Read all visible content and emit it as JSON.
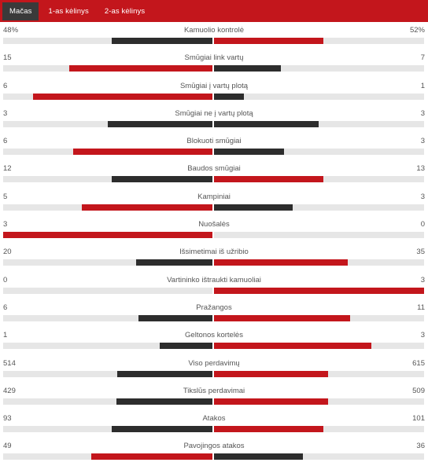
{
  "tabs": [
    {
      "label": "Mačas",
      "active": true
    },
    {
      "label": "1-as kėlinys",
      "active": false
    },
    {
      "label": "2-as kėlinys",
      "active": false
    }
  ],
  "colors": {
    "winner": "#c3161c",
    "loser": "#2d2d2d",
    "track": "#e6e6e6",
    "tabbar": "#c3161c"
  },
  "stats": [
    {
      "label": "Kamuolio kontrolė",
      "home": "48%",
      "away": "52%",
      "home_value": 48,
      "away_value": 52
    },
    {
      "label": "Smūgiai link vartų",
      "home": "15",
      "away": "7",
      "home_value": 15,
      "away_value": 7
    },
    {
      "label": "Smūgiai į vartų plotą",
      "home": "6",
      "away": "1",
      "home_value": 6,
      "away_value": 1
    },
    {
      "label": "Smūgiai ne į vartų plotą",
      "home": "3",
      "away": "3",
      "home_value": 3,
      "away_value": 3
    },
    {
      "label": "Blokuoti smūgiai",
      "home": "6",
      "away": "3",
      "home_value": 6,
      "away_value": 3
    },
    {
      "label": "Baudos smūgiai",
      "home": "12",
      "away": "13",
      "home_value": 12,
      "away_value": 13
    },
    {
      "label": "Kampiniai",
      "home": "5",
      "away": "3",
      "home_value": 5,
      "away_value": 3
    },
    {
      "label": "Nuošalės",
      "home": "3",
      "away": "0",
      "home_value": 3,
      "away_value": 0
    },
    {
      "label": "Išsimetimai iš užribio",
      "home": "20",
      "away": "35",
      "home_value": 20,
      "away_value": 35
    },
    {
      "label": "Vartininko ištraukti kamuoliai",
      "home": "0",
      "away": "3",
      "home_value": 0,
      "away_value": 3
    },
    {
      "label": "Pražangos",
      "home": "6",
      "away": "11",
      "home_value": 6,
      "away_value": 11
    },
    {
      "label": "Geltonos kortelės",
      "home": "1",
      "away": "3",
      "home_value": 1,
      "away_value": 3
    },
    {
      "label": "Viso perdavimų",
      "home": "514",
      "away": "615",
      "home_value": 514,
      "away_value": 615
    },
    {
      "label": "Tikslūs perdavimai",
      "home": "429",
      "away": "509",
      "home_value": 429,
      "away_value": 509
    },
    {
      "label": "Atakos",
      "home": "93",
      "away": "101",
      "home_value": 93,
      "away_value": 101
    },
    {
      "label": "Pavojingos atakos",
      "home": "49",
      "away": "36",
      "home_value": 49,
      "away_value": 36
    }
  ]
}
